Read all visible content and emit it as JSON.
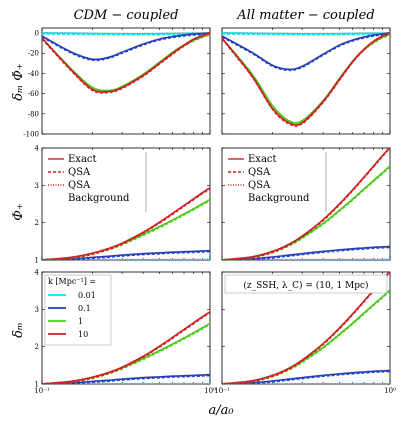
{
  "figure": {
    "col_titles": [
      "CDM − coupled",
      "All matter − coupled"
    ],
    "xlabel": "a/a₀",
    "xticks": [
      {
        "label": "10⁻¹",
        "value": 0.1
      },
      {
        "label": "10⁰",
        "value": 1
      }
    ],
    "rows": [
      {
        "ylabel": "δₘ Φ̇₊",
        "ylim": [
          -100,
          5
        ],
        "yticks": [
          {
            "v": 0,
            "l": "0"
          },
          {
            "v": -20,
            "l": "-20"
          },
          {
            "v": -40,
            "l": "-40"
          },
          {
            "v": -60,
            "l": "-60"
          },
          {
            "v": -80,
            "l": "-80"
          },
          {
            "v": -100,
            "l": "-100"
          }
        ]
      },
      {
        "ylabel": "Φ₊",
        "ylim": [
          1,
          4
        ],
        "yticks": [
          {
            "v": 1,
            "l": "1"
          },
          {
            "v": 2,
            "l": "2"
          },
          {
            "v": 3,
            "l": "3"
          },
          {
            "v": 4,
            "l": "4"
          }
        ]
      },
      {
        "ylabel": "δₘ",
        "ylim": [
          1,
          4
        ],
        "yticks": [
          {
            "v": 1,
            "l": "1"
          },
          {
            "v": 2,
            "l": "2"
          },
          {
            "v": 3,
            "l": "3"
          },
          {
            "v": 4,
            "l": "4"
          }
        ]
      }
    ],
    "legend_methods": {
      "position": "top-left",
      "entries": [
        {
          "label": "Exact",
          "style": "solid"
        },
        {
          "label": "QSA",
          "style": "dashed"
        },
        {
          "label": "QSA",
          "style": "dotted"
        },
        {
          "label": "Background",
          "style": "none"
        }
      ]
    },
    "legend_k": {
      "position": "top-left",
      "title": "k [Mpc⁻¹] =",
      "entries": [
        {
          "label": "0.01",
          "color": "#00e5e5"
        },
        {
          "label": "0.1",
          "color": "#1f3fbf"
        },
        {
          "label": "1",
          "color": "#44d414"
        },
        {
          "label": "10",
          "color": "#d42020"
        }
      ]
    },
    "annotation": "(z_SSH, λ_C) = (10, 1 Mpc)"
  },
  "chart_data": [
    {
      "type": "line",
      "title": "CDM − coupled",
      "ylabel": "δₘ Φ̇₊",
      "xscale": "log",
      "xlim": [
        0.1,
        1
      ],
      "ylim": [
        -100,
        5
      ],
      "x": [
        0.1,
        0.15,
        0.2,
        0.25,
        0.3,
        0.4,
        0.5,
        0.6,
        0.7,
        0.8,
        0.9,
        1.0
      ],
      "series": [
        {
          "name": "0.01",
          "color": "#00e5e5",
          "values": [
            0,
            -0.3,
            -0.5,
            -0.6,
            -0.7,
            -0.7,
            -0.6,
            -0.5,
            -0.4,
            -0.3,
            -0.2,
            0
          ]
        },
        {
          "name": "0.1",
          "color": "#1f3fbf",
          "values": [
            -3,
            -19,
            -26,
            -24,
            -19,
            -11,
            -6,
            -3.5,
            -2,
            -1,
            -0.5,
            0
          ]
        },
        {
          "name": "1",
          "color": "#44d414",
          "values": [
            -5,
            -36,
            -54,
            -57,
            -53,
            -41,
            -29,
            -19,
            -12,
            -7,
            -3.5,
            -1
          ]
        },
        {
          "name": "10",
          "color": "#d42020",
          "values": [
            -5,
            -37,
            -56,
            -58,
            -54,
            -42,
            -30,
            -20,
            -12,
            -6,
            -2.5,
            0
          ]
        }
      ]
    },
    {
      "type": "line",
      "title": "All matter − coupled",
      "ylabel": "δₘ Φ̇₊",
      "xscale": "log",
      "xlim": [
        0.1,
        1
      ],
      "ylim": [
        -100,
        5
      ],
      "x": [
        0.1,
        0.15,
        0.2,
        0.25,
        0.3,
        0.4,
        0.5,
        0.6,
        0.7,
        0.8,
        0.9,
        1.0
      ],
      "series": [
        {
          "name": "0.01",
          "color": "#00e5e5",
          "values": [
            0,
            -0.3,
            -0.5,
            -0.6,
            -0.7,
            -0.7,
            -0.6,
            -0.5,
            -0.4,
            -0.3,
            -0.2,
            0
          ]
        },
        {
          "name": "0.1",
          "color": "#1f3fbf",
          "values": [
            -3,
            -19,
            -32,
            -36,
            -33,
            -21,
            -12,
            -7,
            -4,
            -2,
            -1,
            0
          ]
        },
        {
          "name": "1",
          "color": "#44d414",
          "values": [
            -5,
            -40,
            -72,
            -87,
            -87,
            -67,
            -45,
            -28,
            -16,
            -9,
            -4,
            -1
          ]
        },
        {
          "name": "10",
          "color": "#d42020",
          "values": [
            -5,
            -42,
            -75,
            -89,
            -89,
            -68,
            -46,
            -28,
            -16,
            -8,
            -3,
            0
          ]
        }
      ]
    },
    {
      "type": "line",
      "ylabel": "Φ₊",
      "xscale": "log",
      "xlim": [
        0.1,
        1
      ],
      "ylim": [
        1,
        4
      ],
      "x": [
        0.1,
        0.15,
        0.2,
        0.25,
        0.3,
        0.4,
        0.5,
        0.6,
        0.7,
        0.8,
        0.9,
        1.0
      ],
      "series": [
        {
          "name": "0.01",
          "color": "#00e5e5",
          "values": [
            1,
            1.001,
            1.002,
            1.003,
            1.004,
            1.005,
            1.006,
            1.006,
            1.007,
            1.007,
            1.007,
            1.008
          ]
        },
        {
          "name": "0.1",
          "color": "#1f3fbf",
          "values": [
            1,
            1.03,
            1.07,
            1.1,
            1.13,
            1.17,
            1.19,
            1.21,
            1.22,
            1.23,
            1.24,
            1.25
          ]
        },
        {
          "name": "1",
          "color": "#44d414",
          "values": [
            1,
            1.07,
            1.18,
            1.3,
            1.43,
            1.68,
            1.89,
            2.07,
            2.23,
            2.37,
            2.5,
            2.62
          ]
        },
        {
          "name": "10",
          "color": "#d42020",
          "values": [
            1,
            1.07,
            1.18,
            1.31,
            1.45,
            1.74,
            2.01,
            2.25,
            2.46,
            2.64,
            2.8,
            2.93
          ]
        }
      ]
    },
    {
      "type": "line",
      "ylabel": "Φ₊",
      "xscale": "log",
      "xlim": [
        0.1,
        1
      ],
      "ylim": [
        1,
        4
      ],
      "x": [
        0.1,
        0.15,
        0.2,
        0.25,
        0.3,
        0.4,
        0.5,
        0.6,
        0.7,
        0.8,
        0.9,
        1.0
      ],
      "series": [
        {
          "name": "0.01",
          "color": "#00e5e5",
          "values": [
            1,
            1.001,
            1.002,
            1.003,
            1.004,
            1.005,
            1.006,
            1.006,
            1.007,
            1.007,
            1.007,
            1.008
          ]
        },
        {
          "name": "0.1",
          "color": "#1f3fbf",
          "values": [
            1,
            1.03,
            1.08,
            1.13,
            1.17,
            1.23,
            1.27,
            1.3,
            1.32,
            1.34,
            1.35,
            1.36
          ]
        },
        {
          "name": "1",
          "color": "#44d414",
          "values": [
            1,
            1.08,
            1.22,
            1.4,
            1.6,
            1.98,
            2.33,
            2.63,
            2.9,
            3.13,
            3.33,
            3.52
          ]
        },
        {
          "name": "10",
          "color": "#d42020",
          "values": [
            1,
            1.08,
            1.23,
            1.42,
            1.64,
            2.08,
            2.5,
            2.88,
            3.22,
            3.52,
            3.79,
            4.02
          ]
        }
      ]
    },
    {
      "type": "line",
      "ylabel": "δₘ",
      "xscale": "log",
      "xlim": [
        0.1,
        1
      ],
      "ylim": [
        1,
        4
      ],
      "x": [
        0.1,
        0.15,
        0.2,
        0.25,
        0.3,
        0.4,
        0.5,
        0.6,
        0.7,
        0.8,
        0.9,
        1.0
      ],
      "series": [
        {
          "name": "0.01",
          "color": "#00e5e5",
          "values": [
            1,
            1.0,
            1.0,
            1.0,
            1.001,
            1.001,
            1.001,
            1.001,
            1.001,
            1.001,
            1.001,
            1.001
          ]
        },
        {
          "name": "0.1",
          "color": "#1f3fbf",
          "values": [
            1,
            1.03,
            1.07,
            1.1,
            1.13,
            1.17,
            1.19,
            1.21,
            1.22,
            1.23,
            1.24,
            1.25
          ]
        },
        {
          "name": "1",
          "color": "#44d414",
          "values": [
            1,
            1.07,
            1.18,
            1.3,
            1.43,
            1.68,
            1.89,
            2.07,
            2.23,
            2.37,
            2.5,
            2.62
          ]
        },
        {
          "name": "10",
          "color": "#d42020",
          "values": [
            1,
            1.07,
            1.18,
            1.31,
            1.45,
            1.74,
            2.01,
            2.25,
            2.46,
            2.64,
            2.8,
            2.93
          ]
        }
      ]
    },
    {
      "type": "line",
      "ylabel": "δₘ",
      "xscale": "log",
      "xlim": [
        0.1,
        1
      ],
      "ylim": [
        1,
        4
      ],
      "x": [
        0.1,
        0.15,
        0.2,
        0.25,
        0.3,
        0.4,
        0.5,
        0.6,
        0.7,
        0.8,
        0.9,
        1.0
      ],
      "series": [
        {
          "name": "0.01",
          "color": "#00e5e5",
          "values": [
            1,
            1.0,
            1.0,
            1.0,
            1.001,
            1.001,
            1.001,
            1.001,
            1.001,
            1.001,
            1.001,
            1.001
          ]
        },
        {
          "name": "0.1",
          "color": "#1f3fbf",
          "values": [
            1,
            1.03,
            1.08,
            1.13,
            1.17,
            1.23,
            1.27,
            1.3,
            1.32,
            1.34,
            1.35,
            1.36
          ]
        },
        {
          "name": "1",
          "color": "#44d414",
          "values": [
            1,
            1.08,
            1.22,
            1.4,
            1.6,
            1.98,
            2.33,
            2.63,
            2.9,
            3.13,
            3.33,
            3.52
          ]
        },
        {
          "name": "10",
          "color": "#d42020",
          "values": [
            1,
            1.08,
            1.23,
            1.42,
            1.64,
            2.08,
            2.5,
            2.88,
            3.22,
            3.52,
            3.79,
            4.02
          ]
        }
      ]
    }
  ]
}
